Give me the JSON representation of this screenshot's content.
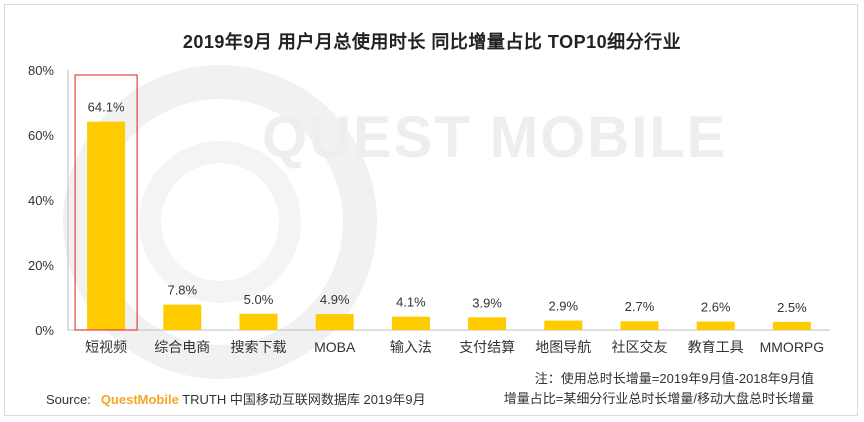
{
  "header": {
    "title": "2019年9月 用户月总使用时长 同比增量占比 TOP10细分行业"
  },
  "watermark": {
    "text": "QUEST MOBILE"
  },
  "chart_data": {
    "type": "bar",
    "categories": [
      "短视频",
      "综合电商",
      "搜索下载",
      "MOBA",
      "输入法",
      "支付结算",
      "地图导航",
      "社区交友",
      "教育工具",
      "MMORPG"
    ],
    "values": [
      64.1,
      7.8,
      5.0,
      4.9,
      4.1,
      3.9,
      2.9,
      2.7,
      2.6,
      2.5
    ],
    "value_labels": [
      "64.1%",
      "7.8%",
      "5.0%",
      "4.9%",
      "4.1%",
      "3.9%",
      "2.9%",
      "2.7%",
      "2.6%",
      "2.5%"
    ],
    "ylim": [
      0,
      80
    ],
    "yticks": [
      0,
      20,
      40,
      60,
      80
    ],
    "ytick_labels": [
      "0%",
      "20%",
      "40%",
      "60%",
      "80%"
    ],
    "highlight_index": 0,
    "grid": false,
    "colors": {
      "bar": "#ffcc00",
      "highlight_border": "#e0443e",
      "axis": "#bfbfbf"
    }
  },
  "footer": {
    "note_line1": "注：使用总时长增量=2019年9月值-2018年9月值",
    "note_line2": "增量占比=某细分行业总时长增量/移动大盘总时长增量",
    "source_label": "Source:",
    "source_brand": "QuestMobile",
    "source_text": "TRUTH 中国移动互联网数据库 2019年9月"
  }
}
